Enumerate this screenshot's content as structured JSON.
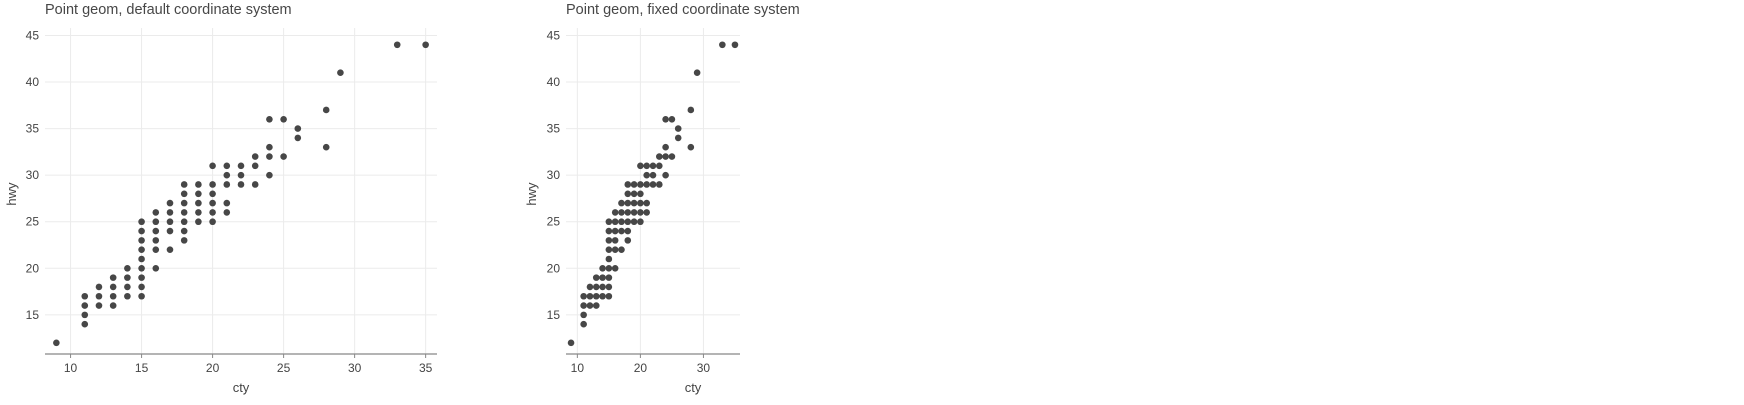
{
  "chart_data": [
    {
      "type": "scatter",
      "title": "Point geom, default coordinate system",
      "xlabel": "cty",
      "ylabel": "hwy",
      "xlim": [
        8.2,
        35.8
      ],
      "ylim": [
        10.8,
        45.8
      ],
      "xticks": [
        10,
        15,
        20,
        25,
        30,
        35
      ],
      "yticks": [
        15,
        20,
        25,
        30,
        35,
        40,
        45
      ],
      "grid": true,
      "legend": "none",
      "points": [
        [
          9,
          12
        ],
        [
          11,
          14
        ],
        [
          11,
          15
        ],
        [
          11,
          16
        ],
        [
          11,
          17
        ],
        [
          12,
          16
        ],
        [
          12,
          17
        ],
        [
          12,
          18
        ],
        [
          13,
          16
        ],
        [
          13,
          17
        ],
        [
          13,
          18
        ],
        [
          13,
          19
        ],
        [
          14,
          17
        ],
        [
          14,
          18
        ],
        [
          14,
          19
        ],
        [
          14,
          20
        ],
        [
          15,
          17
        ],
        [
          15,
          18
        ],
        [
          15,
          19
        ],
        [
          15,
          20
        ],
        [
          15,
          21
        ],
        [
          15,
          22
        ],
        [
          15,
          23
        ],
        [
          15,
          24
        ],
        [
          15,
          25
        ],
        [
          16,
          20
        ],
        [
          16,
          22
        ],
        [
          16,
          23
        ],
        [
          16,
          24
        ],
        [
          16,
          25
        ],
        [
          16,
          26
        ],
        [
          17,
          22
        ],
        [
          17,
          24
        ],
        [
          17,
          25
        ],
        [
          17,
          26
        ],
        [
          17,
          27
        ],
        [
          18,
          23
        ],
        [
          18,
          24
        ],
        [
          18,
          25
        ],
        [
          18,
          26
        ],
        [
          18,
          27
        ],
        [
          18,
          28
        ],
        [
          18,
          29
        ],
        [
          19,
          25
        ],
        [
          19,
          26
        ],
        [
          19,
          27
        ],
        [
          19,
          28
        ],
        [
          19,
          29
        ],
        [
          20,
          25
        ],
        [
          20,
          26
        ],
        [
          20,
          27
        ],
        [
          20,
          28
        ],
        [
          20,
          29
        ],
        [
          20,
          31
        ],
        [
          21,
          26
        ],
        [
          21,
          27
        ],
        [
          21,
          29
        ],
        [
          21,
          30
        ],
        [
          21,
          31
        ],
        [
          22,
          29
        ],
        [
          22,
          30
        ],
        [
          22,
          31
        ],
        [
          23,
          29
        ],
        [
          23,
          31
        ],
        [
          23,
          32
        ],
        [
          24,
          30
        ],
        [
          24,
          32
        ],
        [
          24,
          33
        ],
        [
          24,
          36
        ],
        [
          25,
          32
        ],
        [
          25,
          36
        ],
        [
          26,
          34
        ],
        [
          26,
          35
        ],
        [
          28,
          33
        ],
        [
          28,
          37
        ],
        [
          29,
          41
        ],
        [
          33,
          44
        ],
        [
          35,
          44
        ]
      ]
    },
    {
      "type": "scatter",
      "title": "Point geom, fixed coordinate system",
      "xlabel": "cty",
      "ylabel": "hwy",
      "xlim": [
        8.2,
        35.8
      ],
      "ylim": [
        10.8,
        45.8
      ],
      "xticks": [
        10,
        20,
        30
      ],
      "yticks": [
        15,
        20,
        25,
        30,
        35,
        40,
        45
      ],
      "grid": true,
      "legend": "none",
      "points": [
        [
          9,
          12
        ],
        [
          11,
          14
        ],
        [
          11,
          15
        ],
        [
          11,
          16
        ],
        [
          11,
          17
        ],
        [
          12,
          16
        ],
        [
          12,
          17
        ],
        [
          12,
          18
        ],
        [
          13,
          16
        ],
        [
          13,
          17
        ],
        [
          13,
          18
        ],
        [
          13,
          19
        ],
        [
          14,
          17
        ],
        [
          14,
          18
        ],
        [
          14,
          19
        ],
        [
          14,
          20
        ],
        [
          15,
          17
        ],
        [
          15,
          18
        ],
        [
          15,
          19
        ],
        [
          15,
          20
        ],
        [
          15,
          21
        ],
        [
          15,
          22
        ],
        [
          15,
          23
        ],
        [
          15,
          24
        ],
        [
          15,
          25
        ],
        [
          16,
          20
        ],
        [
          16,
          22
        ],
        [
          16,
          23
        ],
        [
          16,
          24
        ],
        [
          16,
          25
        ],
        [
          16,
          26
        ],
        [
          17,
          22
        ],
        [
          17,
          24
        ],
        [
          17,
          25
        ],
        [
          17,
          26
        ],
        [
          17,
          27
        ],
        [
          18,
          23
        ],
        [
          18,
          24
        ],
        [
          18,
          25
        ],
        [
          18,
          26
        ],
        [
          18,
          27
        ],
        [
          18,
          28
        ],
        [
          18,
          29
        ],
        [
          19,
          25
        ],
        [
          19,
          26
        ],
        [
          19,
          27
        ],
        [
          19,
          28
        ],
        [
          19,
          29
        ],
        [
          20,
          25
        ],
        [
          20,
          26
        ],
        [
          20,
          27
        ],
        [
          20,
          28
        ],
        [
          20,
          29
        ],
        [
          20,
          31
        ],
        [
          21,
          26
        ],
        [
          21,
          27
        ],
        [
          21,
          29
        ],
        [
          21,
          30
        ],
        [
          21,
          31
        ],
        [
          22,
          29
        ],
        [
          22,
          30
        ],
        [
          22,
          31
        ],
        [
          23,
          29
        ],
        [
          23,
          31
        ],
        [
          23,
          32
        ],
        [
          24,
          30
        ],
        [
          24,
          32
        ],
        [
          24,
          33
        ],
        [
          24,
          36
        ],
        [
          25,
          32
        ],
        [
          25,
          36
        ],
        [
          26,
          34
        ],
        [
          26,
          35
        ],
        [
          28,
          33
        ],
        [
          28,
          37
        ],
        [
          29,
          41
        ],
        [
          33,
          44
        ],
        [
          35,
          44
        ]
      ]
    }
  ]
}
